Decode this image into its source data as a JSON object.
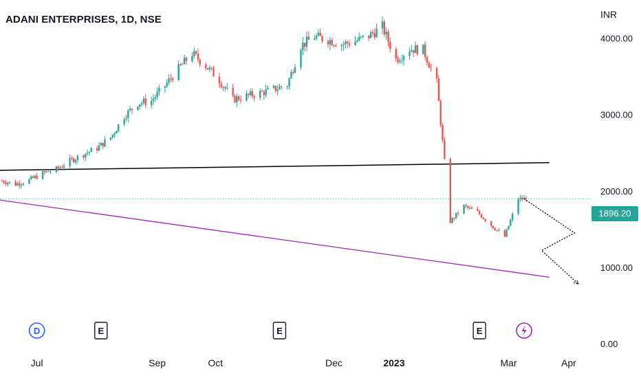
{
  "header": {
    "title": "ADANI ENTERPRISES, 1D, NSE",
    "currency": "INR"
  },
  "last_price": "1896.20",
  "colors": {
    "up": "#26a69a",
    "down": "#ef5350",
    "resistance_line": "#000000",
    "support_line": "#9c27b0",
    "projection": "#000000",
    "last_price_line": "#26a69a",
    "dividend_marker": "#2962ff",
    "earnings_marker": "#131722",
    "split_marker": "#9c27b0"
  },
  "events": [
    {
      "type": "dividend",
      "label": "D",
      "date": "2022-07-01"
    },
    {
      "type": "earnings",
      "label": "E",
      "date": "2022-08-03"
    },
    {
      "type": "earnings",
      "label": "E",
      "date": "2022-11-03"
    },
    {
      "type": "earnings",
      "label": "E",
      "date": "2023-02-14"
    },
    {
      "type": "split",
      "label": "",
      "icon": "lightning-icon",
      "date": "2023-03-09"
    }
  ],
  "chart_data": {
    "type": "candlestick",
    "title": "ADANI ENTERPRISES, 1D, NSE",
    "xlabel": "",
    "ylabel": "",
    "x_tick_labels": [
      "Jul",
      "Sep",
      "Oct",
      "Dec",
      "2023",
      "Mar",
      "Apr"
    ],
    "x_tick_dates": [
      "2022-07-01",
      "2022-09-01",
      "2022-10-01",
      "2022-12-01",
      "2023-01-01",
      "2023-03-01",
      "2023-04-01"
    ],
    "y_ticks": [
      0,
      1000,
      2000,
      3000,
      4000
    ],
    "y_tick_labels": [
      "0.00",
      "1000.00",
      "2000.00",
      "3000.00",
      "4000.00"
    ],
    "ylim": [
      0,
      4500
    ],
    "xlim": [
      "2022-06-12",
      "2023-04-12"
    ],
    "grid": false,
    "weekly_closes": [
      {
        "date": "2022-06-13",
        "close": 2130
      },
      {
        "date": "2022-06-20",
        "close": 2090
      },
      {
        "date": "2022-06-27",
        "close": 2140
      },
      {
        "date": "2022-07-04",
        "close": 2230
      },
      {
        "date": "2022-07-11",
        "close": 2280
      },
      {
        "date": "2022-07-18",
        "close": 2390
      },
      {
        "date": "2022-07-25",
        "close": 2480
      },
      {
        "date": "2022-08-01",
        "close": 2560
      },
      {
        "date": "2022-08-08",
        "close": 2700
      },
      {
        "date": "2022-08-15",
        "close": 2980
      },
      {
        "date": "2022-08-22",
        "close": 3150
      },
      {
        "date": "2022-08-29",
        "close": 3180
      },
      {
        "date": "2022-09-05",
        "close": 3380
      },
      {
        "date": "2022-09-12",
        "close": 3600
      },
      {
        "date": "2022-09-19",
        "close": 3800
      },
      {
        "date": "2022-09-26",
        "close": 3640
      },
      {
        "date": "2022-10-03",
        "close": 3450
      },
      {
        "date": "2022-10-10",
        "close": 3200
      },
      {
        "date": "2022-10-17",
        "close": 3240
      },
      {
        "date": "2022-10-24",
        "close": 3280
      },
      {
        "date": "2022-10-31",
        "close": 3330
      },
      {
        "date": "2022-11-07",
        "close": 3390
      },
      {
        "date": "2022-11-14",
        "close": 3900
      },
      {
        "date": "2022-11-21",
        "close": 4020
      },
      {
        "date": "2022-11-28",
        "close": 3980
      },
      {
        "date": "2022-12-05",
        "close": 3920
      },
      {
        "date": "2022-12-12",
        "close": 3960
      },
      {
        "date": "2022-12-19",
        "close": 4030
      },
      {
        "date": "2022-12-26",
        "close": 4150
      },
      {
        "date": "2023-01-02",
        "close": 3720
      },
      {
        "date": "2023-01-09",
        "close": 3860
      },
      {
        "date": "2023-01-16",
        "close": 3850
      },
      {
        "date": "2023-01-23",
        "close": 3420
      },
      {
        "date": "2023-01-30",
        "close": 1600
      },
      {
        "date": "2023-02-06",
        "close": 1800
      },
      {
        "date": "2023-02-13",
        "close": 1720
      },
      {
        "date": "2023-02-20",
        "close": 1550
      },
      {
        "date": "2023-02-27",
        "close": 1400
      },
      {
        "date": "2023-03-06",
        "close": 1896.2
      }
    ],
    "trendlines": [
      {
        "name": "",
        "kind": "resistance",
        "from": {
          "date": "2022-06-12",
          "value": 2270
        },
        "to": {
          "date": "2023-03-22",
          "value": 2370
        }
      },
      {
        "name": "",
        "kind": "support",
        "from": {
          "date": "2022-06-12",
          "value": 1880
        },
        "to": {
          "date": "2023-03-22",
          "value": 870
        }
      }
    ],
    "projection_path": [
      {
        "date": "2023-03-09",
        "value": 1896.2
      },
      {
        "date": "2023-04-04",
        "value": 1450
      },
      {
        "date": "2023-03-18",
        "value": 1220
      },
      {
        "date": "2023-04-06",
        "value": 780
      }
    ],
    "last_price": 1896.2
  }
}
